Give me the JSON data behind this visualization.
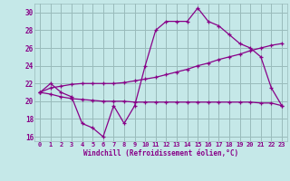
{
  "xlabel": "Windchill (Refroidissement éolien,°C)",
  "xlim": [
    -0.5,
    23.5
  ],
  "ylim": [
    15.5,
    31.0
  ],
  "yticks": [
    16,
    18,
    20,
    22,
    24,
    26,
    28,
    30
  ],
  "xticks": [
    0,
    1,
    2,
    3,
    4,
    5,
    6,
    7,
    8,
    9,
    10,
    11,
    12,
    13,
    14,
    15,
    16,
    17,
    18,
    19,
    20,
    21,
    22,
    23
  ],
  "bg_color": "#c5e8e8",
  "line_color": "#880088",
  "grid_color": "#99bbbb",
  "curve1_x": [
    0,
    1,
    2,
    3,
    4,
    5,
    6,
    7,
    8,
    9,
    10,
    11,
    12,
    13,
    14,
    15,
    16,
    17,
    18,
    19,
    20,
    21,
    22,
    23
  ],
  "curve1_y": [
    21.0,
    22.0,
    21.0,
    20.5,
    17.5,
    17.0,
    16.0,
    19.5,
    17.5,
    19.5,
    24.0,
    28.0,
    29.0,
    29.0,
    29.0,
    30.5,
    29.0,
    28.5,
    27.5,
    26.5,
    26.0,
    25.0,
    21.5,
    19.5
  ],
  "curve2_x": [
    0,
    1,
    2,
    3,
    4,
    5,
    6,
    7,
    8,
    9,
    10,
    11,
    12,
    13,
    14,
    15,
    16,
    17,
    18,
    19,
    20,
    21,
    22,
    23
  ],
  "curve2_y": [
    21.0,
    21.5,
    21.7,
    21.9,
    22.0,
    22.0,
    22.0,
    22.0,
    22.1,
    22.3,
    22.5,
    22.7,
    23.0,
    23.3,
    23.6,
    24.0,
    24.3,
    24.7,
    25.0,
    25.3,
    25.7,
    26.0,
    26.3,
    26.5
  ],
  "curve3_x": [
    0,
    1,
    2,
    3,
    4,
    5,
    6,
    7,
    8,
    9,
    10,
    11,
    12,
    13,
    14,
    15,
    16,
    17,
    18,
    19,
    20,
    21,
    22,
    23
  ],
  "curve3_y": [
    21.0,
    20.8,
    20.5,
    20.3,
    20.2,
    20.1,
    20.0,
    20.0,
    20.0,
    19.9,
    19.9,
    19.9,
    19.9,
    19.9,
    19.9,
    19.9,
    19.9,
    19.9,
    19.9,
    19.9,
    19.9,
    19.8,
    19.8,
    19.5
  ]
}
